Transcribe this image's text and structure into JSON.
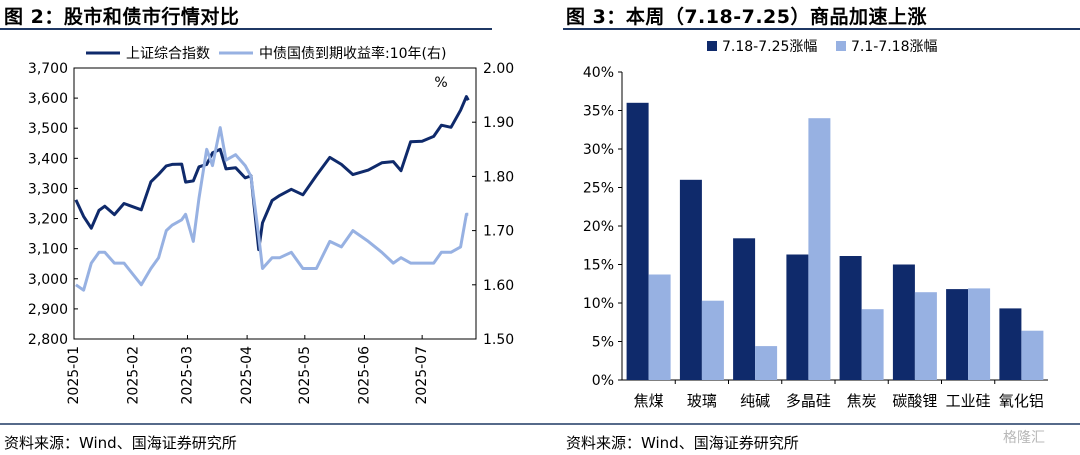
{
  "left": {
    "title": "图 2：股市和债市行情对比",
    "source": "资料来源：Wind、国海证券研究所"
  },
  "right": {
    "title": "图 3：本周（7.18-7.25）商品加速上涨",
    "source": "资料来源：Wind、国海证券研究所"
  },
  "watermark": "格隆汇",
  "chart_data": [
    {
      "type": "line",
      "x_ticks": [
        "2025-01",
        "2025-02",
        "2025-03",
        "2025-04",
        "2025-05",
        "2025-06",
        "2025-07"
      ],
      "y_left": {
        "ticks": [
          "2,800",
          "2,900",
          "3,000",
          "3,100",
          "3,200",
          "3,300",
          "3,400",
          "3,500",
          "3,600",
          "3,700"
        ],
        "ylim": [
          2800,
          3700
        ]
      },
      "y_right": {
        "ticks": [
          "1.50",
          "1.60",
          "1.70",
          "1.80",
          "1.90",
          "2.00"
        ],
        "ylim": [
          1.5,
          2.0
        ],
        "unit": "%"
      },
      "grid": false,
      "legend_position": "top",
      "series": [
        {
          "name": "上证综合指数",
          "axis": "left",
          "color": "#0f2a6b",
          "points": [
            [
              "2025-01-02",
              3262
            ],
            [
              "2025-01-06",
              3207
            ],
            [
              "2025-01-10",
              3168
            ],
            [
              "2025-01-14",
              3227
            ],
            [
              "2025-01-17",
              3241
            ],
            [
              "2025-01-22",
              3213
            ],
            [
              "2025-01-27",
              3250
            ],
            [
              "2025-02-05",
              3229
            ],
            [
              "2025-02-10",
              3322
            ],
            [
              "2025-02-14",
              3347
            ],
            [
              "2025-02-18",
              3375
            ],
            [
              "2025-02-21",
              3380
            ],
            [
              "2025-02-26",
              3381
            ],
            [
              "2025-02-28",
              3321
            ],
            [
              "2025-03-04",
              3325
            ],
            [
              "2025-03-07",
              3372
            ],
            [
              "2025-03-11",
              3380
            ],
            [
              "2025-03-14",
              3418
            ],
            [
              "2025-03-18",
              3430
            ],
            [
              "2025-03-21",
              3365
            ],
            [
              "2025-03-26",
              3369
            ],
            [
              "2025-03-31",
              3335
            ],
            [
              "2025-04-03",
              3342
            ],
            [
              "2025-04-07",
              3097
            ],
            [
              "2025-04-09",
              3186
            ],
            [
              "2025-04-14",
              3260
            ],
            [
              "2025-04-18",
              3277
            ],
            [
              "2025-04-24",
              3297
            ],
            [
              "2025-04-30",
              3279
            ],
            [
              "2025-05-07",
              3343
            ],
            [
              "2025-05-14",
              3403
            ],
            [
              "2025-05-20",
              3380
            ],
            [
              "2025-05-26",
              3346
            ],
            [
              "2025-06-03",
              3361
            ],
            [
              "2025-06-10",
              3385
            ],
            [
              "2025-06-16",
              3389
            ],
            [
              "2025-06-20",
              3359
            ],
            [
              "2025-06-25",
              3455
            ],
            [
              "2025-07-01",
              3457
            ],
            [
              "2025-07-07",
              3473
            ],
            [
              "2025-07-11",
              3510
            ],
            [
              "2025-07-16",
              3503
            ],
            [
              "2025-07-21",
              3560
            ],
            [
              "2025-07-24",
              3605
            ],
            [
              "2025-07-25",
              3593
            ]
          ]
        },
        {
          "name": "中债国债到期收益率:10年(右)",
          "axis": "right",
          "color": "#97b1e2",
          "points": [
            [
              "2025-01-02",
              1.6
            ],
            [
              "2025-01-06",
              1.59
            ],
            [
              "2025-01-10",
              1.64
            ],
            [
              "2025-01-14",
              1.66
            ],
            [
              "2025-01-17",
              1.66
            ],
            [
              "2025-01-22",
              1.64
            ],
            [
              "2025-01-27",
              1.64
            ],
            [
              "2025-02-05",
              1.6
            ],
            [
              "2025-02-10",
              1.63
            ],
            [
              "2025-02-14",
              1.65
            ],
            [
              "2025-02-18",
              1.7
            ],
            [
              "2025-02-21",
              1.71
            ],
            [
              "2025-02-26",
              1.72
            ],
            [
              "2025-02-28",
              1.73
            ],
            [
              "2025-03-04",
              1.68
            ],
            [
              "2025-03-07",
              1.76
            ],
            [
              "2025-03-11",
              1.85
            ],
            [
              "2025-03-14",
              1.82
            ],
            [
              "2025-03-18",
              1.89
            ],
            [
              "2025-03-21",
              1.83
            ],
            [
              "2025-03-26",
              1.84
            ],
            [
              "2025-03-31",
              1.82
            ],
            [
              "2025-04-03",
              1.8
            ],
            [
              "2025-04-07",
              1.69
            ],
            [
              "2025-04-09",
              1.63
            ],
            [
              "2025-04-14",
              1.65
            ],
            [
              "2025-04-18",
              1.65
            ],
            [
              "2025-04-24",
              1.66
            ],
            [
              "2025-04-30",
              1.63
            ],
            [
              "2025-05-07",
              1.63
            ],
            [
              "2025-05-14",
              1.68
            ],
            [
              "2025-05-20",
              1.67
            ],
            [
              "2025-05-26",
              1.7
            ],
            [
              "2025-06-03",
              1.68
            ],
            [
              "2025-06-10",
              1.66
            ],
            [
              "2025-06-16",
              1.64
            ],
            [
              "2025-06-20",
              1.65
            ],
            [
              "2025-06-25",
              1.64
            ],
            [
              "2025-07-01",
              1.64
            ],
            [
              "2025-07-07",
              1.64
            ],
            [
              "2025-07-11",
              1.66
            ],
            [
              "2025-07-16",
              1.66
            ],
            [
              "2025-07-21",
              1.67
            ],
            [
              "2025-07-24",
              1.73
            ],
            [
              "2025-07-25",
              1.73
            ]
          ]
        }
      ]
    },
    {
      "type": "bar",
      "categories": [
        "焦煤",
        "玻璃",
        "纯碱",
        "多晶硅",
        "焦炭",
        "碳酸锂",
        "工业硅",
        "氧化铝"
      ],
      "y_ticks": [
        "0%",
        "5%",
        "10%",
        "15%",
        "20%",
        "25%",
        "30%",
        "35%",
        "40%"
      ],
      "ylim": [
        0,
        40
      ],
      "grid": false,
      "legend_position": "top",
      "series": [
        {
          "name": "7.18-7.25涨幅",
          "color": "#0f2a6b",
          "values": [
            36.0,
            26.0,
            18.4,
            16.3,
            16.1,
            15.0,
            11.8,
            9.3
          ]
        },
        {
          "name": "7.1-7.18涨幅",
          "color": "#97b1e2",
          "values": [
            13.7,
            10.3,
            4.4,
            34.0,
            9.2,
            11.4,
            11.9,
            6.4
          ]
        }
      ]
    }
  ]
}
